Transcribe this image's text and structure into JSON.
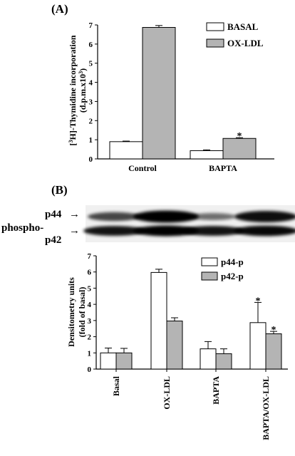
{
  "colors": {
    "basal": "#ffffff",
    "treated": "#b4b4b4",
    "ink": "#000000"
  },
  "chart_data": [
    {
      "type": "bar",
      "panel_label": "(A)",
      "ylabel": "[3H]-Thymidine incorporation (d.p.m.x10^3)",
      "ylabel_line1_parts": [
        "[",
        "3",
        "H]-Thymidine incorporation"
      ],
      "ylabel_line2_parts": [
        "(d.p.m.x10",
        "3",
        ")"
      ],
      "ylim": [
        0,
        7
      ],
      "yticks": [
        "0",
        "1",
        "2",
        "3",
        "4",
        "5",
        "6",
        "7"
      ],
      "categories": [
        "Control",
        "BAPTA"
      ],
      "series": [
        {
          "name": "BASAL",
          "values": [
            0.9,
            0.43
          ],
          "errors": [
            0.03,
            0.04
          ]
        },
        {
          "name": "OX-LDL",
          "values": [
            6.87,
            1.07
          ],
          "errors": [
            0.1,
            0.04
          ]
        }
      ],
      "significance": [
        {
          "category": "BAPTA",
          "series": "OX-LDL",
          "mark": "*"
        }
      ],
      "legend_position": "top-right"
    },
    {
      "type": "bar",
      "panel_label": "(B)",
      "ylabel": "Densitometry units (fold of basal)",
      "ylabel_line1": "Densitometry units",
      "ylabel_line2": "(fold of basal)",
      "ylim": [
        0,
        7
      ],
      "yticks": [
        "0",
        "1",
        "2",
        "3",
        "4",
        "5",
        "6",
        "7"
      ],
      "categories": [
        "Basal",
        "OX-LDL",
        "BAPTA",
        "BAPTA/OX-LDL"
      ],
      "series": [
        {
          "name": "p44-p",
          "values": [
            1.0,
            5.97,
            1.25,
            2.87
          ],
          "errors": [
            0.3,
            0.2,
            0.45,
            1.25
          ]
        },
        {
          "name": "p42-p",
          "values": [
            1.0,
            2.97,
            0.95,
            2.18
          ],
          "errors": [
            0.28,
            0.2,
            0.3,
            0.15
          ]
        }
      ],
      "significance": [
        {
          "category": "BAPTA/OX-LDL",
          "series": "p44-p",
          "mark": "*"
        },
        {
          "category": "BAPTA/OX-LDL",
          "series": "p42-p",
          "mark": "*"
        }
      ],
      "legend_position": "top-right"
    }
  ],
  "blot": {
    "label_p44": "p44",
    "label_p42": "p42",
    "label_phospho": "phospho-",
    "arrow": "→",
    "band_intensity_p44": [
      0.55,
      1.0,
      0.3,
      0.9
    ],
    "band_intensity_p42": [
      0.85,
      1.0,
      0.85,
      0.95
    ]
  }
}
